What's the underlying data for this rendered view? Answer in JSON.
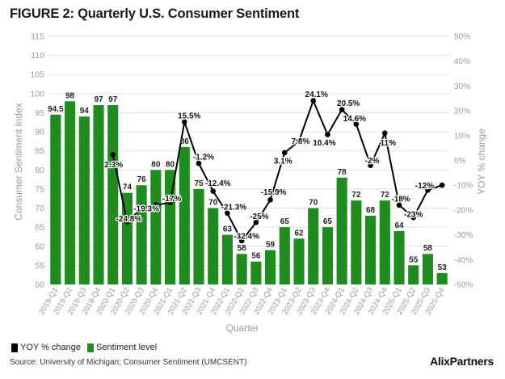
{
  "title": "FIGURE 2: Quarterly U.S. Consumer Sentiment",
  "legend": {
    "line_label": "YOY % change",
    "bar_label": "Sentiment level"
  },
  "source": "Source: University of Michigan; Consumer Sentiment (UMCSENT)",
  "brand": "AlixPartners",
  "colors": {
    "bar": "#1f8c1f",
    "line": "#000000",
    "grid": "#e3e3e3",
    "axis_text": "#9a9a9a",
    "label_text": "#222222"
  },
  "chart_data": {
    "type": "bar+line",
    "xlabel": "Quarter",
    "ylabel": "Consumer Sentiment Index",
    "y2label": "YOY % change",
    "ylim": [
      50,
      115
    ],
    "y2lim": [
      -50,
      50
    ],
    "yticks": [
      50,
      55,
      60,
      65,
      70,
      75,
      80,
      85,
      90,
      95,
      100,
      105,
      110,
      115
    ],
    "y2ticks": [
      "-50%",
      "-40%",
      "-30%",
      "-20%",
      "-10%",
      "0%",
      "10%",
      "20%",
      "30%",
      "40%",
      "50%"
    ],
    "categories": [
      "2019-Q1",
      "2019-Q2",
      "2019-Q3",
      "2019-Q4",
      "2020-Q1",
      "2020-Q2",
      "2020-Q3",
      "2020-Q4",
      "2021-Q1",
      "2021-Q2",
      "2021-Q3",
      "2021-Q4",
      "2022-Q1",
      "2022-Q2",
      "2022-Q3",
      "2022-Q4",
      "2023-Q1",
      "2023-Q2",
      "2023-Q3",
      "2023-Q4",
      "2024-Q1",
      "2024-Q2",
      "2024-Q3",
      "2024-Q4",
      "2025-Q1",
      "2025-Q2",
      "2025-Q3",
      "2025-Q4"
    ],
    "series": [
      {
        "name": "Sentiment level",
        "type": "bar",
        "values": [
          94.5,
          98,
          94,
          97,
          97,
          74,
          76,
          80,
          80,
          86,
          75,
          70,
          63,
          58,
          56,
          59,
          65,
          62,
          70,
          65,
          78,
          72,
          68,
          72,
          64,
          55,
          58,
          53
        ],
        "labels": [
          "94.5",
          "98",
          "94",
          "97",
          "97",
          "74",
          "76",
          "80",
          "80",
          "86",
          "75",
          "70",
          "63",
          "58",
          "56",
          "59",
          "65",
          "62",
          "70",
          "65",
          "78",
          "72",
          "68",
          "72",
          "64",
          "55",
          "58",
          "53"
        ]
      },
      {
        "name": "YOY % change",
        "type": "line",
        "axis": "secondary",
        "points": [
          {
            "x": 4,
            "y": 2.3,
            "label": "2.3%"
          },
          {
            "x": 5,
            "y": -24.8,
            "label": "-24.8%"
          },
          {
            "x": 6,
            "y": -19.3,
            "label": "-19.3%"
          },
          {
            "x": 7,
            "y": -18,
            "label": ""
          },
          {
            "x": 8,
            "y": -17,
            "label": "-17%"
          },
          {
            "x": 9,
            "y": 15.5,
            "label": "15.5%"
          },
          {
            "x": 10,
            "y": -1.2,
            "label": "-1.2%"
          },
          {
            "x": 11,
            "y": -12.4,
            "label": "-12.4%"
          },
          {
            "x": 12,
            "y": -21.3,
            "label": "-21.3%"
          },
          {
            "x": 13,
            "y": -32.4,
            "label": "-32.4%"
          },
          {
            "x": 14,
            "y": -25,
            "label": "-25%"
          },
          {
            "x": 15,
            "y": -15.9,
            "label": "-15.9%"
          },
          {
            "x": 16,
            "y": 3.1,
            "label": "3.1%"
          },
          {
            "x": 17,
            "y": 7.8,
            "label": "7.8%"
          },
          {
            "x": 18,
            "y": 24.1,
            "label": "24.1%"
          },
          {
            "x": 19,
            "y": 10.4,
            "label": "10.4%"
          },
          {
            "x": 20,
            "y": 20.5,
            "label": "20.5%"
          },
          {
            "x": 21,
            "y": 14.6,
            "label": "14.6%"
          },
          {
            "x": 22,
            "y": -2,
            "label": "-2%"
          },
          {
            "x": 23,
            "y": 11,
            "label": "11%"
          },
          {
            "x": 24,
            "y": -18,
            "label": "-18%"
          },
          {
            "x": 25,
            "y": -23,
            "label": "-23%"
          },
          {
            "x": 26,
            "y": -12,
            "label": "-12%"
          },
          {
            "x": 27,
            "y": -10,
            "label": ""
          }
        ]
      }
    ]
  }
}
